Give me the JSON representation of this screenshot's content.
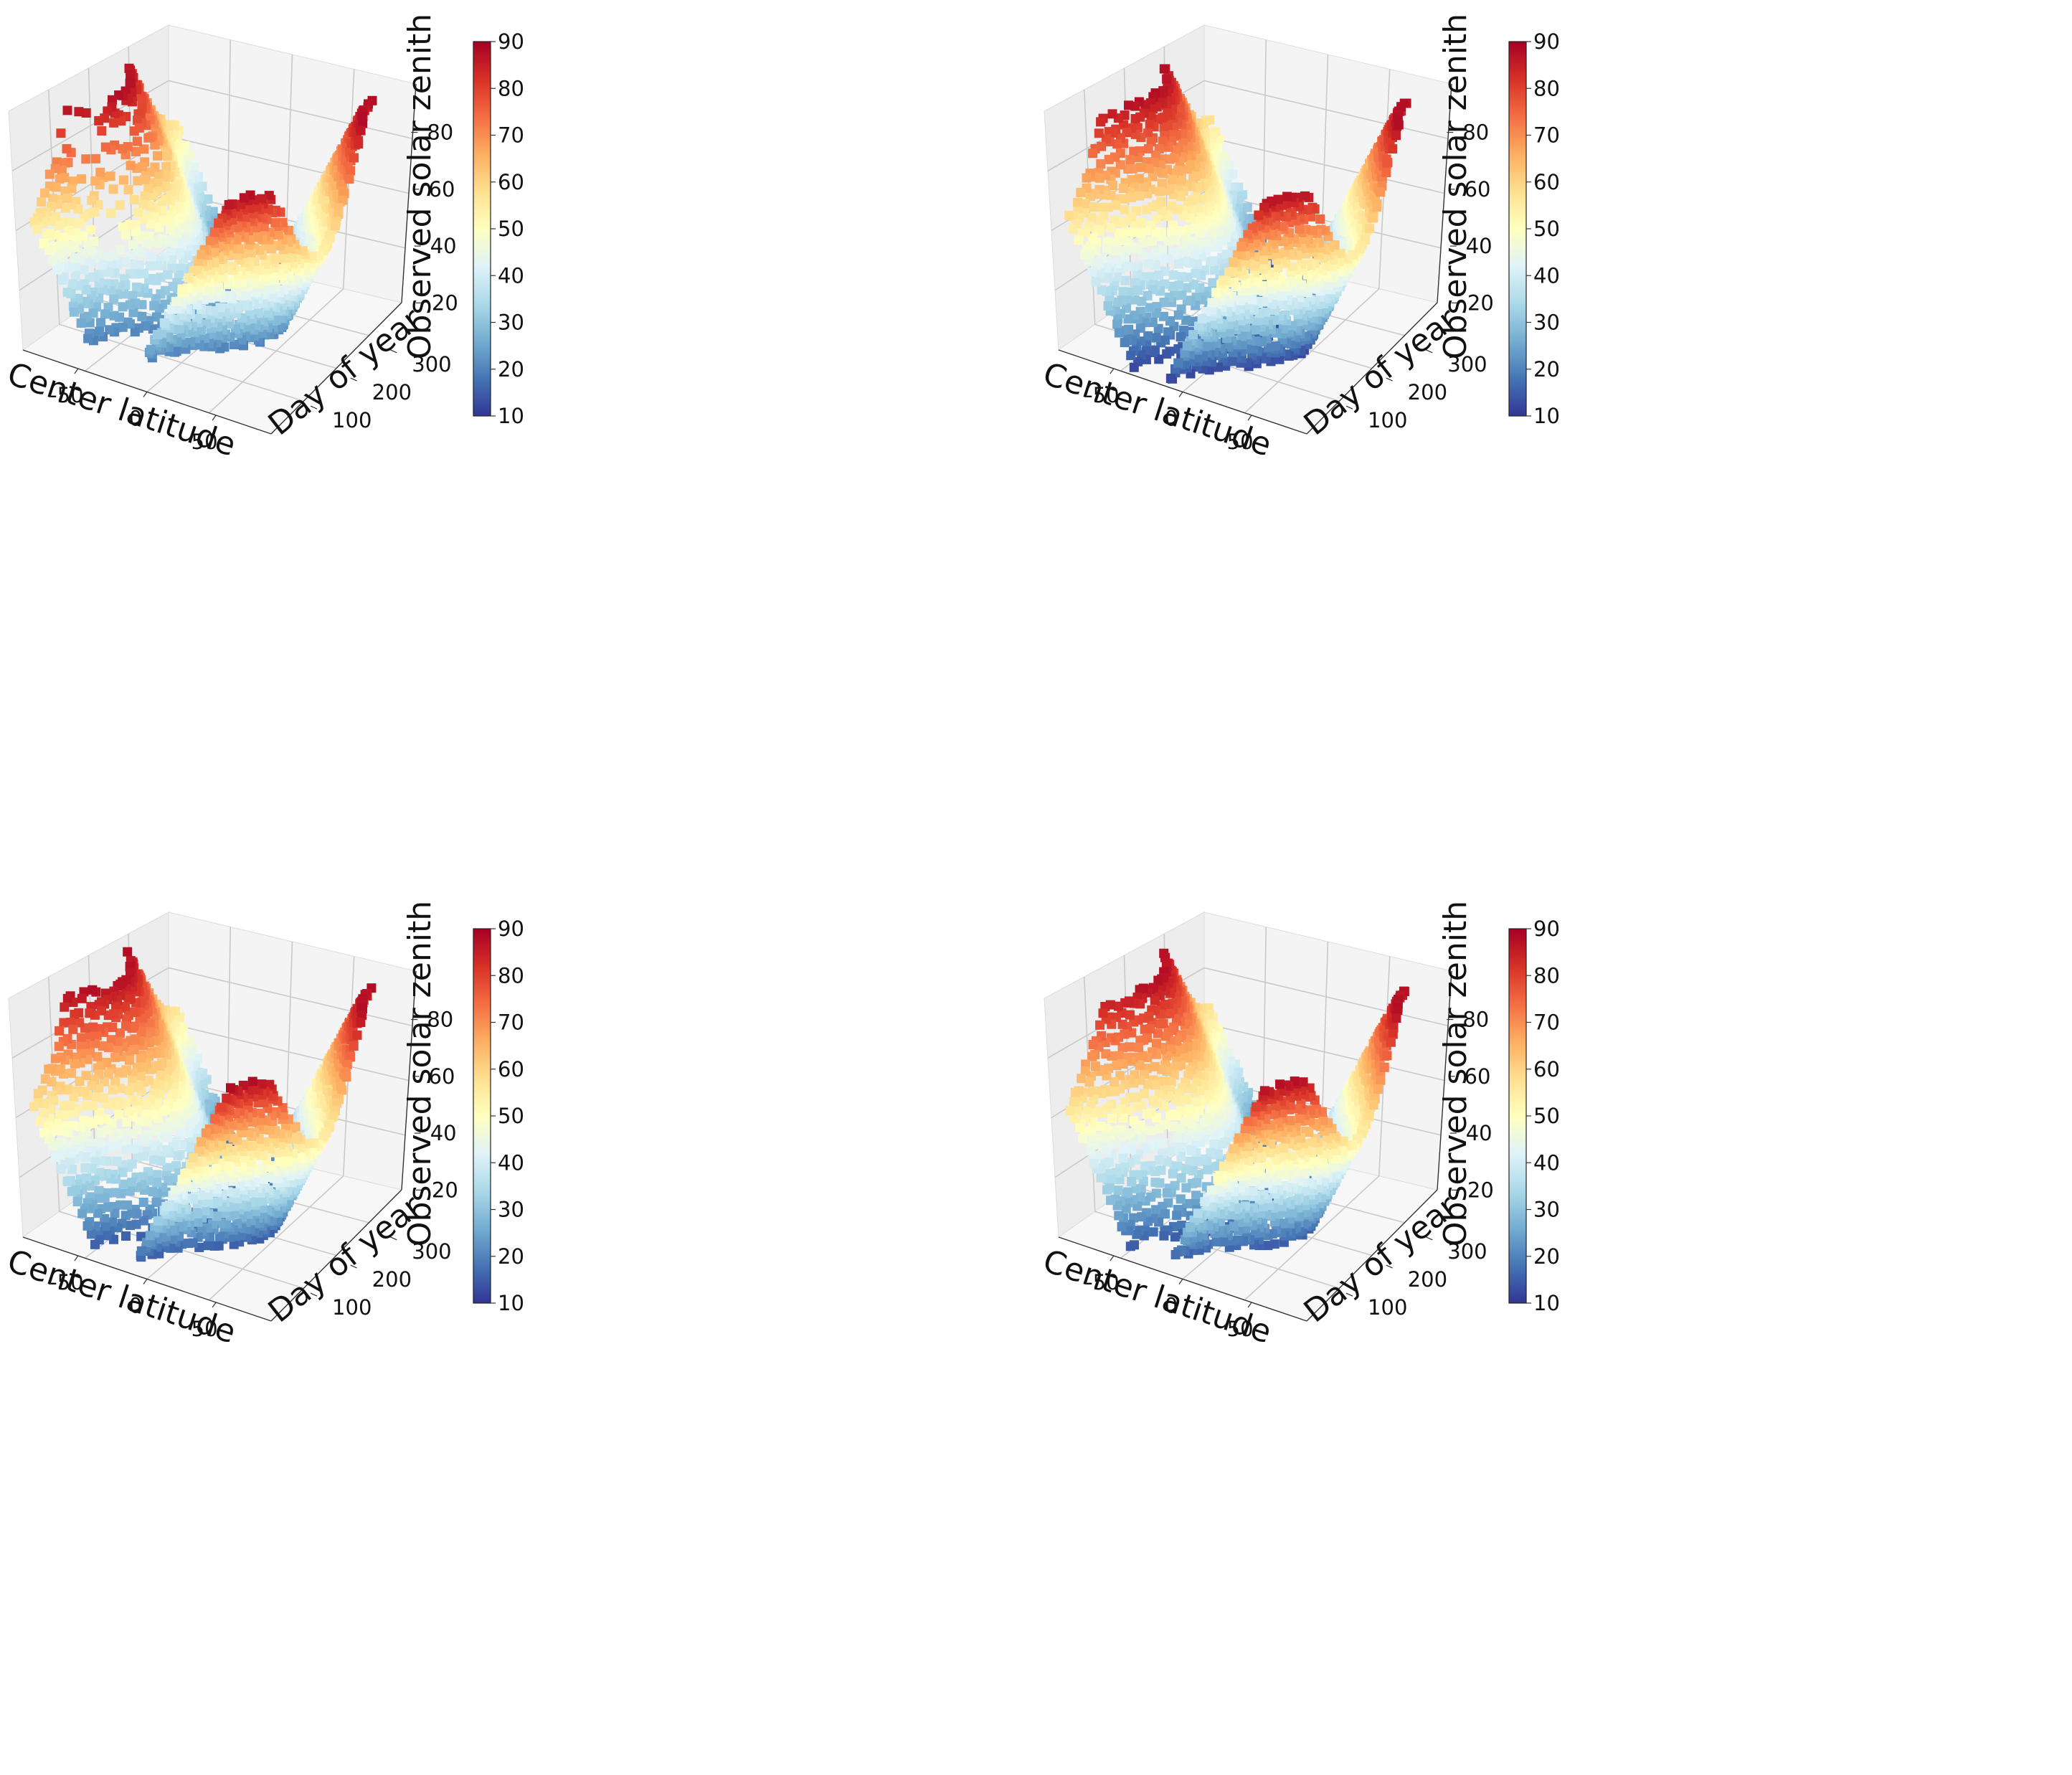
{
  "figure": {
    "colormap": {
      "name": "RdYlBu_r",
      "stops": [
        "#313695",
        "#4575b4",
        "#74add1",
        "#abd9e9",
        "#e0f3f8",
        "#ffffbf",
        "#fee090",
        "#fdae61",
        "#f46d43",
        "#d73027",
        "#a50026"
      ]
    }
  },
  "chart_data": [
    {
      "type": "scatter",
      "title": "",
      "xlabel": "Center latitude",
      "ylabel": "Day of year",
      "zlabel": "Observed solar zenith",
      "x_ticks": [
        "-50",
        "0",
        "50"
      ],
      "y_ticks": [
        "100",
        "200",
        "300"
      ],
      "z_ticks": [
        "20",
        "40",
        "60",
        "80"
      ],
      "xlim": [
        -90,
        90
      ],
      "ylim": [
        1,
        366
      ],
      "zlim": [
        10,
        92
      ],
      "colorbar": {
        "label": "Observed solar zenith",
        "range": [
          10,
          90
        ],
        "ticks": [
          "10",
          "20",
          "30",
          "40",
          "50",
          "60",
          "70",
          "80",
          "90"
        ]
      },
      "zenith_min": 20,
      "sparse_left_arm": true
    },
    {
      "type": "scatter",
      "title": "",
      "xlabel": "Center latitude",
      "ylabel": "Day of year",
      "zlabel": "Observed solar zenith",
      "x_ticks": [
        "-50",
        "0",
        "50"
      ],
      "y_ticks": [
        "100",
        "200",
        "300"
      ],
      "z_ticks": [
        "20",
        "40",
        "60",
        "80"
      ],
      "xlim": [
        -90,
        90
      ],
      "ylim": [
        1,
        366
      ],
      "zlim": [
        10,
        92
      ],
      "colorbar": {
        "label": "Observed solar zenith",
        "range": [
          10,
          90
        ],
        "ticks": [
          "10",
          "20",
          "30",
          "40",
          "50",
          "60",
          "70",
          "80",
          "90"
        ]
      },
      "zenith_min": 12,
      "sparse_left_arm": false
    },
    {
      "type": "scatter",
      "title": "",
      "xlabel": "Center latitude",
      "ylabel": "Day of year",
      "zlabel": "Observed solar zenith",
      "x_ticks": [
        "-50",
        "0",
        "50"
      ],
      "y_ticks": [
        "100",
        "200",
        "300"
      ],
      "z_ticks": [
        "20",
        "40",
        "60",
        "80"
      ],
      "xlim": [
        -90,
        90
      ],
      "ylim": [
        1,
        366
      ],
      "zlim": [
        10,
        92
      ],
      "colorbar": {
        "label": "Observed solar zenith",
        "range": [
          10,
          90
        ],
        "ticks": [
          "10",
          "20",
          "30",
          "40",
          "50",
          "60",
          "70",
          "80",
          "90"
        ]
      },
      "zenith_min": 15,
      "sparse_left_arm": false
    },
    {
      "type": "scatter",
      "title": "",
      "xlabel": "Center latitude",
      "ylabel": "Day of year",
      "zlabel": "Observed solar zenith",
      "x_ticks": [
        "-50",
        "0",
        "50"
      ],
      "y_ticks": [
        "100",
        "200",
        "300"
      ],
      "z_ticks": [
        "20",
        "40",
        "60",
        "80"
      ],
      "xlim": [
        -90,
        90
      ],
      "ylim": [
        1,
        366
      ],
      "zlim": [
        10,
        92
      ],
      "colorbar": {
        "label": "Observed solar zenith",
        "range": [
          10,
          90
        ],
        "ticks": [
          "10",
          "20",
          "30",
          "40",
          "50",
          "60",
          "70",
          "80",
          "90"
        ]
      },
      "zenith_min": 15,
      "sparse_left_arm": false
    }
  ]
}
